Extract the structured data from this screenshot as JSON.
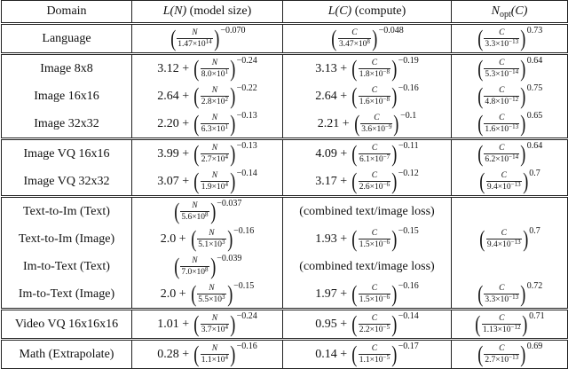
{
  "table": {
    "header": [
      "Domain",
      {
        "math": "L(N)",
        "text": "(model size)"
      },
      {
        "math": "L(C)",
        "text": "(compute)"
      },
      {
        "math": "N",
        "sub": "opt",
        "tail": "(C)"
      }
    ],
    "groups": [
      {
        "rows": [
          {
            "domain": "Language",
            "cells": [
              {
                "num": "N",
                "den": "1.47×10",
                "den_exp": "14",
                "exp": "−0.070"
              },
              {
                "num": "C",
                "den": "3.47×10",
                "den_exp": "8",
                "exp": "−0.048"
              },
              {
                "num": "C",
                "den": "3.3×10",
                "den_exp": "−13",
                "exp": "0.73"
              }
            ]
          }
        ]
      },
      {
        "rows": [
          {
            "domain": "Image 8x8",
            "cells": [
              {
                "coef": "3.12 +",
                "num": "N",
                "den": "8.0×10",
                "den_exp": "1",
                "exp": "−0.24"
              },
              {
                "coef": "3.13 +",
                "num": "C",
                "den": "1.8×10",
                "den_exp": "−8",
                "exp": "−0.19"
              },
              {
                "num": "C",
                "den": "5.3×10",
                "den_exp": "−14",
                "exp": "0.64"
              }
            ]
          },
          {
            "domain": "Image 16x16",
            "cells": [
              {
                "coef": "2.64 +",
                "num": "N",
                "den": "2.8×10",
                "den_exp": "2",
                "exp": "−0.22"
              },
              {
                "coef": "2.64 +",
                "num": "C",
                "den": "1.6×10",
                "den_exp": "−8",
                "exp": "−0.16"
              },
              {
                "num": "C",
                "den": "4.8×10",
                "den_exp": "−12",
                "exp": "0.75"
              }
            ]
          },
          {
            "domain": "Image 32x32",
            "cells": [
              {
                "coef": "2.20 +",
                "num": "N",
                "den": "6.3×10",
                "den_exp": "1",
                "exp": "−0.13"
              },
              {
                "coef": "2.21 +",
                "num": "C",
                "den": "3.6×10",
                "den_exp": "−9",
                "exp": "−0.1"
              },
              {
                "num": "C",
                "den": "1.6×10",
                "den_exp": "−13",
                "exp": "0.65"
              }
            ]
          }
        ]
      },
      {
        "rows": [
          {
            "domain": "Image VQ 16x16",
            "cells": [
              {
                "coef": "3.99 +",
                "num": "N",
                "den": "2.7×10",
                "den_exp": "4",
                "exp": "−0.13"
              },
              {
                "coef": "4.09 +",
                "num": "C",
                "den": "6.1×10",
                "den_exp": "−7",
                "exp": "−0.11"
              },
              {
                "num": "C",
                "den": "6.2×10",
                "den_exp": "−14",
                "exp": "0.64"
              }
            ]
          },
          {
            "domain": "Image VQ 32x32",
            "cells": [
              {
                "coef": "3.07 +",
                "num": "N",
                "den": "1.9×10",
                "den_exp": "4",
                "exp": "−0.14"
              },
              {
                "coef": "3.17 +",
                "num": "C",
                "den": "2.6×10",
                "den_exp": "−6",
                "exp": "−0.12"
              },
              {
                "num": "C",
                "den": "9.4×10",
                "den_exp": "−13",
                "exp": "0.7"
              }
            ]
          }
        ]
      },
      {
        "rows": [
          {
            "domain": "Text-to-Im (Text)",
            "cells": [
              {
                "num": "N",
                "den": "5.6×10",
                "den_exp": "8",
                "exp": "−0.037"
              },
              "(combined text/image loss)",
              null
            ]
          },
          {
            "domain": "Text-to-Im (Image)",
            "cells": [
              {
                "coef": "2.0 +",
                "num": "N",
                "den": "5.1×10",
                "den_exp": "3",
                "exp": "−0.16"
              },
              {
                "coef": "1.93 +",
                "num": "C",
                "den": "1.5×10",
                "den_exp": "−6",
                "exp": "−0.15"
              },
              {
                "num": "C",
                "den": "9.4×10",
                "den_exp": "−13",
                "exp": "0.7"
              }
            ]
          },
          {
            "domain": "Im-to-Text (Text)",
            "cells": [
              {
                "num": "N",
                "den": "7.0×10",
                "den_exp": "8",
                "exp": "−0.039"
              },
              "(combined text/image loss)",
              null
            ]
          },
          {
            "domain": "Im-to-Text (Image)",
            "cells": [
              {
                "coef": "2.0 +",
                "num": "N",
                "den": "5.5×10",
                "den_exp": "3",
                "exp": "−0.15"
              },
              {
                "coef": "1.97 +",
                "num": "C",
                "den": "1.5×10",
                "den_exp": "−6",
                "exp": "−0.16"
              },
              {
                "num": "C",
                "den": "3.3×10",
                "den_exp": "−13",
                "exp": "0.72"
              }
            ]
          }
        ]
      },
      {
        "rows": [
          {
            "domain": "Video VQ 16x16x16",
            "cells": [
              {
                "coef": "1.01 +",
                "num": "N",
                "den": "3.7×10",
                "den_exp": "4",
                "exp": "−0.24"
              },
              {
                "coef": "0.95 +",
                "num": "C",
                "den": "2.2×10",
                "den_exp": "−5",
                "exp": "−0.14"
              },
              {
                "num": "C",
                "den": "1.13×10",
                "den_exp": "−12",
                "exp": "0.71"
              }
            ]
          }
        ]
      },
      {
        "rows": [
          {
            "domain": "Math (Extrapolate)",
            "cells": [
              {
                "coef": "0.28 +",
                "num": "N",
                "den": "1.1×10",
                "den_exp": "4",
                "exp": "−0.16"
              },
              {
                "coef": "0.14 +",
                "num": "C",
                "den": "1.1×10",
                "den_exp": "−5",
                "exp": "−0.17"
              },
              {
                "num": "C",
                "den": "2.7×10",
                "den_exp": "−13",
                "exp": "0.69"
              }
            ]
          }
        ]
      }
    ]
  }
}
